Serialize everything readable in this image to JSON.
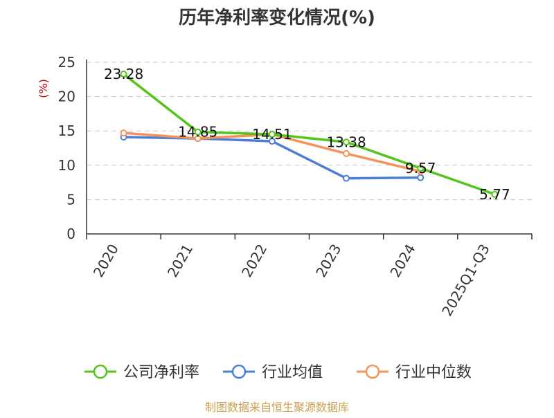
{
  "chart_data": {
    "type": "line",
    "title": "历年净利率变化情况(%)",
    "ylabel": "(%)",
    "categories": [
      "2020",
      "2021",
      "2022",
      "2023",
      "2024",
      "2025Q1-Q3"
    ],
    "ylim": [
      0,
      25
    ],
    "yticks": [
      "0",
      "5",
      "10",
      "15",
      "20",
      "25"
    ],
    "grid": true,
    "legend_position": "bottom",
    "series": [
      {
        "name": "公司净利率",
        "color": "#52c41a",
        "values": [
          23.28,
          14.85,
          14.51,
          13.38,
          9.57,
          5.77
        ],
        "labels": [
          "23.28",
          "14.85",
          "14.51",
          "13.38",
          "9.57",
          "5.77"
        ]
      },
      {
        "name": "行业均值",
        "color": "#4a7fd8",
        "values": [
          14.1,
          13.9,
          13.5,
          8.1,
          8.2,
          null
        ]
      },
      {
        "name": "行业中位数",
        "color": "#f5925a",
        "values": [
          14.7,
          13.9,
          14.5,
          11.7,
          9.1,
          null
        ]
      }
    ]
  },
  "source": "制图数据来自恒生聚源数据库"
}
